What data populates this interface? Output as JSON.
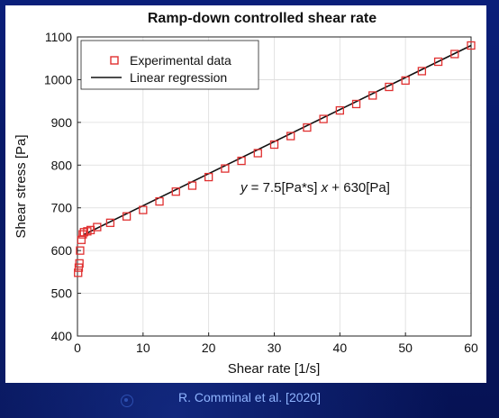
{
  "citation": "R. Comminal et al. [2020]",
  "chart_data": {
    "type": "scatter",
    "title": "Ramp-down controlled shear rate",
    "xlabel": "Shear rate [1/s]",
    "ylabel": "Shear stress [Pa]",
    "xlim": [
      0,
      60
    ],
    "ylim": [
      400,
      1100
    ],
    "xticks": [
      0,
      10,
      20,
      30,
      40,
      50,
      60
    ],
    "yticks": [
      400,
      500,
      600,
      700,
      800,
      900,
      1000,
      1100
    ],
    "grid": true,
    "legend_position": "top-left",
    "annotation": {
      "prefix": "y",
      "equals": " = 7.5[Pa*s] ",
      "var": "x",
      "rest": " + 630[Pa]"
    },
    "series": [
      {
        "name": "Experimental data",
        "kind": "markers",
        "marker": "square",
        "color": "#e03030",
        "x": [
          0.1,
          0.2,
          0.3,
          0.4,
          0.6,
          0.8,
          1.0,
          1.5,
          2.0,
          3.0,
          5.0,
          7.5,
          10.0,
          12.5,
          15.0,
          17.5,
          20.0,
          22.5,
          25.0,
          27.5,
          30.0,
          32.5,
          35.0,
          37.5,
          40.0,
          42.5,
          45.0,
          47.5,
          50.0,
          52.5,
          55.0,
          57.5,
          60.0
        ],
        "y": [
          548,
          560,
          570,
          600,
          625,
          638,
          643,
          645,
          648,
          655,
          665,
          680,
          695,
          715,
          738,
          752,
          772,
          792,
          810,
          828,
          848,
          868,
          888,
          908,
          928,
          943,
          963,
          983,
          998,
          1020,
          1042,
          1060,
          1080
        ]
      },
      {
        "name": "Linear regression",
        "kind": "line",
        "color": "#111111",
        "x": [
          0.9,
          60
        ],
        "y": [
          636.75,
          1080
        ]
      }
    ]
  }
}
